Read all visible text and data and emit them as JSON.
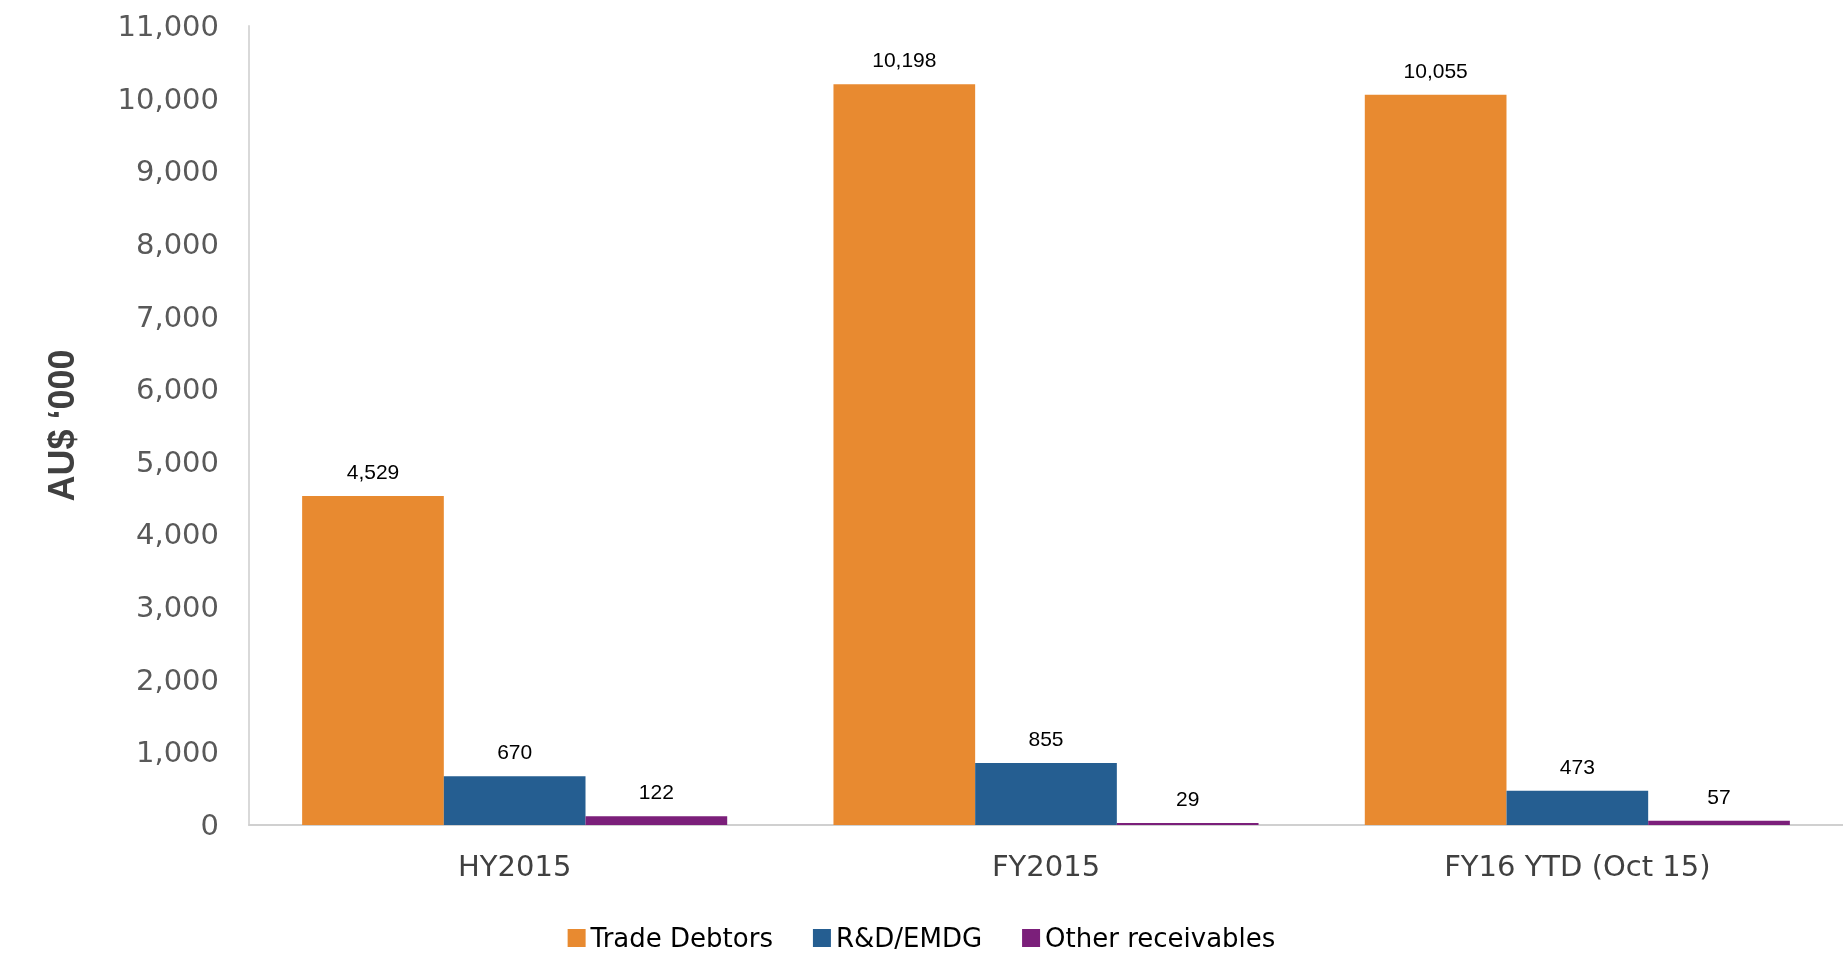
{
  "chart_data": {
    "type": "bar",
    "ylabel": "AU$ ‘000",
    "categories": [
      "HY2015",
      "FY2015",
      "FY16 YTD (Oct 15)"
    ],
    "series": [
      {
        "name": "Trade Debtors",
        "color": "#e88a30",
        "values": [
          4529,
          10198,
          10055
        ],
        "value_labels": [
          "4,529",
          "10,198",
          "10,055"
        ]
      },
      {
        "name": "R&D/EMDG",
        "color": "#255e91",
        "values": [
          670,
          855,
          473
        ],
        "value_labels": [
          "670",
          "855",
          "473"
        ]
      },
      {
        "name": "Other receivables",
        "color": "#7b1f7a",
        "values": [
          122,
          29,
          57
        ],
        "value_labels": [
          "122",
          "29",
          "57"
        ]
      }
    ],
    "ylim": [
      0,
      11000
    ],
    "yticks": [
      0,
      {
        "value": 1000,
        "label": "1,000"
      },
      {
        "value": 2000,
        "label": "2,000"
      },
      {
        "value": 3000,
        "label": "3,000"
      },
      {
        "value": 4000,
        "label": "4,000"
      },
      {
        "value": 5000,
        "label": "5,000"
      },
      {
        "value": 6000,
        "label": "6,000"
      },
      {
        "value": 7000,
        "label": "7,000"
      },
      {
        "value": 8000,
        "label": "8,000"
      },
      {
        "value": 9000,
        "label": "9,000"
      },
      {
        "value": 10000,
        "label": "10,000"
      },
      {
        "value": 11000,
        "label": "11,000"
      }
    ],
    "grid": false,
    "legend": "bottom"
  }
}
